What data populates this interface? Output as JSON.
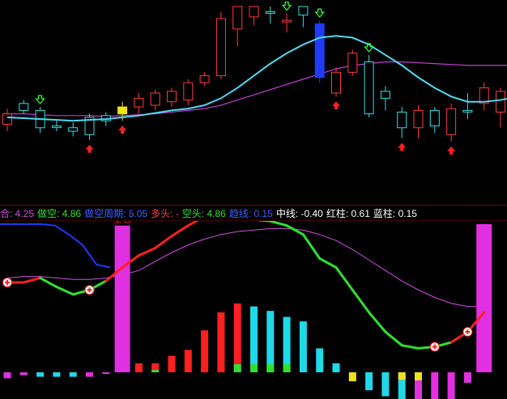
{
  "colors": {
    "up": "#ff3b3b",
    "down": "#33e0e0",
    "ma_fast": "#52d8f0",
    "ma_slow": "#c040d0",
    "blue_candle": "#1f3bff",
    "buy_arrow": "#ff2020",
    "sell_arrow": "#30ff30",
    "blue_line": "#1f35ff",
    "red_line": "#ff2020",
    "green_line": "#30e030",
    "violet_line": "#d050e0",
    "magenta_bar": "#e030e0",
    "cyan_bar": "#20d8e8",
    "yellow": "#f0e020"
  },
  "legend": [
    {
      "label": "合: ",
      "value": "4.25",
      "color": "#d050d0"
    },
    {
      "label": "做空: ",
      "value": "4.86",
      "color": "#30e030"
    },
    {
      "label": "做空周期: ",
      "value": "5.05",
      "color": "#4060ff"
    },
    {
      "label": "多头: ",
      "value": "-",
      "color": "#ff4040"
    },
    {
      "label": "空头: ",
      "value": "4.86",
      "color": "#30e030"
    },
    {
      "label": "趋线: ",
      "value": "0.15",
      "color": "#4060ff"
    },
    {
      "label": "中线: ",
      "value": "-0.40",
      "color": "#ffffff"
    },
    {
      "label": "红柱: ",
      "value": "0.61",
      "color": "#ffffff"
    },
    {
      "label": "蓝柱: ",
      "value": "0.15",
      "color": "#ffffff"
    }
  ],
  "annotation_full": "全仓",
  "chart_data": [
    {
      "type": "candlestick",
      "title": "",
      "ylim": [
        0,
        100
      ],
      "candles": [
        {
          "o": 32,
          "c": 38,
          "h": 41,
          "l": 28,
          "dir": "up"
        },
        {
          "o": 40,
          "c": 44,
          "h": 46,
          "l": 38,
          "dir": "down"
        },
        {
          "o": 30,
          "c": 40,
          "h": 42,
          "l": 27,
          "dir": "down"
        },
        {
          "o": 31,
          "c": 31,
          "h": 34,
          "l": 28,
          "dir": "down"
        },
        {
          "o": 28,
          "c": 30,
          "h": 33,
          "l": 25,
          "dir": "down"
        },
        {
          "o": 26,
          "c": 36,
          "h": 38,
          "l": 23,
          "dir": "down"
        },
        {
          "o": 34,
          "c": 37,
          "h": 39,
          "l": 31,
          "dir": "down"
        },
        {
          "o": 38,
          "c": 42,
          "h": 45,
          "l": 34,
          "dir": "yellow"
        },
        {
          "o": 42,
          "c": 47,
          "h": 50,
          "l": 38,
          "dir": "up"
        },
        {
          "o": 43,
          "c": 50,
          "h": 52,
          "l": 40,
          "dir": "up"
        },
        {
          "o": 45,
          "c": 51,
          "h": 53,
          "l": 42,
          "dir": "up"
        },
        {
          "o": 46,
          "c": 56,
          "h": 58,
          "l": 43,
          "dir": "up"
        },
        {
          "o": 56,
          "c": 60,
          "h": 62,
          "l": 54,
          "dir": "up"
        },
        {
          "o": 60,
          "c": 93,
          "h": 97,
          "l": 58,
          "dir": "up"
        },
        {
          "o": 87,
          "c": 100,
          "h": 100,
          "l": 77,
          "dir": "up"
        },
        {
          "o": 94,
          "c": 100,
          "h": 100,
          "l": 89,
          "dir": "up"
        },
        {
          "o": 97,
          "c": 97,
          "h": 100,
          "l": 90,
          "dir": "down"
        },
        {
          "o": 92,
          "c": 92,
          "h": 96,
          "l": 85,
          "dir": "up"
        },
        {
          "o": 95,
          "c": 100,
          "h": 100,
          "l": 88,
          "dir": "down"
        },
        {
          "o": 90,
          "c": 59,
          "h": 92,
          "l": 56,
          "dir": "blue"
        },
        {
          "o": 50,
          "c": 62,
          "h": 65,
          "l": 48,
          "dir": "up"
        },
        {
          "o": 62,
          "c": 73,
          "h": 75,
          "l": 60,
          "dir": "up"
        },
        {
          "o": 68,
          "c": 38,
          "h": 72,
          "l": 36,
          "dir": "down"
        },
        {
          "o": 51,
          "c": 47,
          "h": 54,
          "l": 40,
          "dir": "down"
        },
        {
          "o": 39,
          "c": 30,
          "h": 42,
          "l": 24,
          "dir": "down"
        },
        {
          "o": 40,
          "c": 30,
          "h": 43,
          "l": 24,
          "dir": "up"
        },
        {
          "o": 40,
          "c": 31,
          "h": 42,
          "l": 27,
          "dir": "down"
        },
        {
          "o": 41,
          "c": 26,
          "h": 44,
          "l": 22,
          "dir": "up"
        },
        {
          "o": 40,
          "c": 40,
          "h": 50,
          "l": 35,
          "dir": "down"
        },
        {
          "o": 44,
          "c": 53,
          "h": 56,
          "l": 40,
          "dir": "up"
        },
        {
          "o": 51,
          "c": 39,
          "h": 53,
          "l": 30,
          "dir": "up"
        },
        {
          "o": 64,
          "c": 53,
          "h": 66,
          "l": 47,
          "dir": "up"
        },
        {
          "o": 72,
          "c": 72,
          "h": 78,
          "l": 65,
          "dir": "down"
        }
      ],
      "ma_fast": [
        36,
        35.5,
        35,
        34.5,
        34,
        34.5,
        35,
        36,
        37,
        38.5,
        40,
        41,
        43,
        47,
        53,
        60,
        67,
        73,
        78,
        82,
        83,
        82,
        78,
        72,
        66,
        59,
        53,
        48,
        45,
        45,
        46,
        48,
        52
      ],
      "ma_slow": [
        38,
        38,
        37.5,
        37,
        37,
        37,
        36.5,
        37,
        37.5,
        38,
        39,
        40,
        41,
        43,
        46,
        49,
        52,
        55,
        58,
        61,
        64,
        66,
        67,
        68,
        68,
        67.5,
        67,
        66.5,
        66,
        66,
        66,
        66,
        66
      ],
      "buy_signals": [
        5,
        7,
        20,
        24,
        27
      ],
      "sell_signals": [
        2,
        17,
        19,
        22
      ]
    },
    {
      "type": "indicator",
      "title": "",
      "ylim": [
        -10,
        100
      ],
      "bars": [
        {
          "v": -4,
          "color": "magenta"
        },
        {
          "v": -2,
          "color": "magenta"
        },
        {
          "v": -3,
          "color": "cyan"
        },
        {
          "v": -3,
          "color": "cyan"
        },
        {
          "v": -3,
          "color": "cyan"
        },
        {
          "v": -3,
          "color": "magenta"
        },
        {
          "v": -1,
          "color": "magenta"
        },
        {
          "v": 98,
          "color": "magenta"
        },
        {
          "v": 6,
          "color": "red"
        },
        {
          "v": 6,
          "color": "red_green"
        },
        {
          "v": 11,
          "color": "red"
        },
        {
          "v": 15,
          "color": "red"
        },
        {
          "v": 28,
          "color": "red"
        },
        {
          "v": 40,
          "color": "red"
        },
        {
          "v": 46,
          "color": "red_green"
        },
        {
          "v": 44,
          "color": "cyan_green"
        },
        {
          "v": 41,
          "color": "cyan_green"
        },
        {
          "v": 37,
          "color": "cyan_green"
        },
        {
          "v": 34,
          "color": "cyan"
        },
        {
          "v": 16,
          "color": "cyan"
        },
        {
          "v": 6,
          "color": "cyan"
        },
        {
          "v": -6,
          "color": "yellow"
        },
        {
          "v": -12,
          "color": "cyan"
        },
        {
          "v": -16,
          "color": "cyan"
        },
        {
          "v": -20,
          "color": "cyan_yellow"
        },
        {
          "v": -22,
          "color": "magenta_yellow"
        },
        {
          "v": -20,
          "color": "magenta"
        },
        {
          "v": -18,
          "color": "magenta"
        },
        {
          "v": -7,
          "color": "magenta"
        },
        {
          "v": 99,
          "color": "magenta"
        }
      ],
      "blue_line": [
        99,
        99,
        99,
        99,
        98,
        92,
        85,
        72,
        70
      ],
      "violet_line": [
        63,
        64,
        64,
        63,
        62,
        62,
        63,
        65,
        68,
        74,
        80,
        85,
        89,
        92,
        94,
        95,
        96,
        96,
        95,
        92,
        88,
        82,
        75,
        68,
        61,
        55,
        50,
        46,
        44,
        44
      ],
      "main_line": [
        60,
        60,
        63,
        57,
        52,
        55,
        61,
        70,
        78,
        83,
        91,
        98,
        104,
        106,
        105,
        102,
        101,
        98,
        92,
        76,
        70,
        55,
        40,
        27,
        18,
        16,
        17,
        20,
        27,
        40
      ],
      "main_colors": [
        "red",
        "red",
        "green",
        "green",
        "green",
        "green",
        "red",
        "red",
        "red",
        "red",
        "red",
        "red",
        "red",
        "green",
        "green",
        "green",
        "green",
        "green",
        "green",
        "green",
        "green",
        "green",
        "green",
        "green",
        "green",
        "green",
        "green",
        "red",
        "red",
        "red"
      ],
      "markers": [
        0,
        5,
        26,
        28
      ],
      "full_position_index": 7
    }
  ]
}
